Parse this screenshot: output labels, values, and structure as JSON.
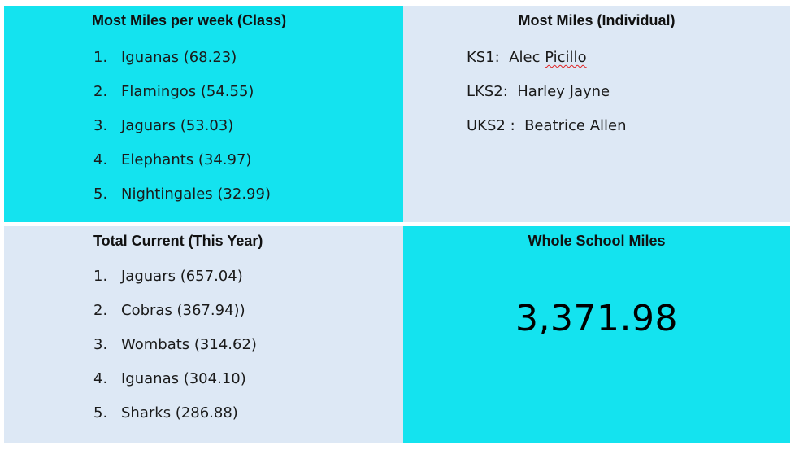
{
  "weekly_class": {
    "title": "Most Miles per week (Class)",
    "items": [
      {
        "rank": "1.",
        "text": "Iguanas (68.23)"
      },
      {
        "rank": "2.",
        "text": "Flamingos (54.55)"
      },
      {
        "rank": "3.",
        "text": "Jaguars (53.03)"
      },
      {
        "rank": "4.",
        "text": "Elephants (34.97)"
      },
      {
        "rank": "5.",
        "text": "Nightingales (32.99)"
      }
    ]
  },
  "individual": {
    "title": "Most Miles (Individual)",
    "items": [
      {
        "prefix": "KS1:  Alec ",
        "name": "Picillo"
      },
      {
        "prefix": "LKS2:  Harley Jayne",
        "name": ""
      },
      {
        "prefix": "UKS2 :  Beatrice Allen",
        "name": ""
      }
    ]
  },
  "total_current": {
    "title": "Total Current (This Year)",
    "items": [
      {
        "rank": "1.",
        "text": "Jaguars (657.04)"
      },
      {
        "rank": "2.",
        "text": "Cobras (367.94))"
      },
      {
        "rank": "3.",
        "text": "Wombats (314.62)"
      },
      {
        "rank": "4.",
        "text": "Iguanas (304.10)"
      },
      {
        "rank": "5.",
        "text": "Sharks (286.88)"
      }
    ]
  },
  "whole_school": {
    "title": "Whole School Miles",
    "total": "3,371.98"
  },
  "colors": {
    "cyan_cell": "#14e3ef",
    "pale_cell": "#dde8f5"
  }
}
